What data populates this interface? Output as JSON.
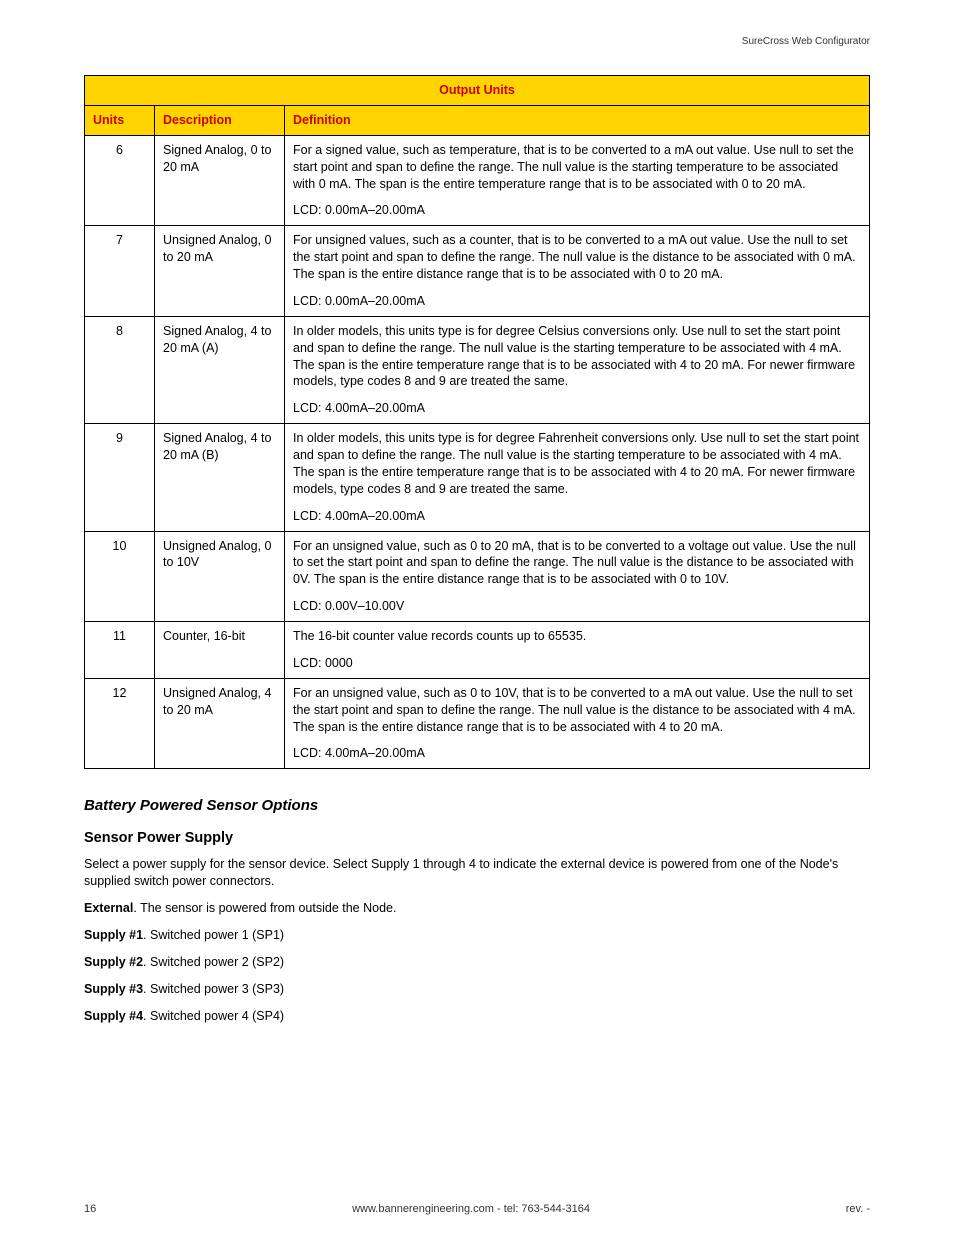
{
  "header": {
    "product": "SureCross Web Configurator"
  },
  "table": {
    "title": "Output Units",
    "columns": {
      "units": "Units",
      "description": "Description",
      "definition": "Definition"
    },
    "rows": [
      {
        "units": "6",
        "desc": "Signed Analog, 0 to 20 mA",
        "def": "For a signed value, such as temperature, that is to be converted to a mA out value. Use null to set the start point and span to define the range. The null value is the starting temperature to be associated with 0 mA. The span is the entire temperature range that is to be associated with 0 to 20 mA.",
        "lcd": "LCD: 0.00mA–20.00mA"
      },
      {
        "units": "7",
        "desc": "Unsigned Analog, 0 to 20 mA",
        "def": "For unsigned values, such as a counter, that is to be converted to a mA out value. Use the null to set the start point and span to define the range. The null value is the distance to be associated with 0 mA. The span is the entire distance range that is to be associated with 0 to 20 mA.",
        "lcd": "LCD: 0.00mA–20.00mA"
      },
      {
        "units": "8",
        "desc": "Signed Analog, 4 to 20 mA (A)",
        "def": "In older models, this units type is for degree Celsius conversions only. Use null to set the start point and span to define the range. The null value is the starting temperature to be associated with 4 mA. The span is the entire temperature range that is to be associated with 4 to 20 mA. For newer firmware models, type codes 8 and 9 are treated the same.",
        "lcd": "LCD: 4.00mA–20.00mA"
      },
      {
        "units": "9",
        "desc": "Signed Analog, 4 to 20 mA (B)",
        "def": "In older models, this units type is for degree Fahrenheit conversions only. Use null to set the start point and span to define the range. The null value is the starting temperature to be associated with 4 mA. The span is the entire temperature range that is to be associated with 4 to 20 mA. For newer firmware models, type codes 8 and 9 are treated the same.",
        "lcd": "LCD: 4.00mA–20.00mA"
      },
      {
        "units": "10",
        "desc": "Unsigned Analog, 0 to 10V",
        "def": "For an unsigned value, such as 0 to 20 mA, that is to be converted to a voltage out value. Use the null to set the start point and span to define the range. The null value is the distance to be associated with 0V. The span is the entire distance range that is to be associated with 0 to 10V.",
        "lcd": "LCD: 0.00V–10.00V"
      },
      {
        "units": "11",
        "desc": "Counter, 16-bit",
        "def": "The 16-bit counter value records counts up to 65535.",
        "lcd": "LCD: 0000"
      },
      {
        "units": "12",
        "desc": "Unsigned Analog, 4 to 20 mA",
        "def": "For an unsigned value, such as 0 to 10V, that is to be converted to a mA out value. Use the null to set the start point and span to define the range. The null value is the distance to be associated with 4 mA. The span is the entire distance range that is to be associated with 4 to 20 mA.",
        "lcd": "LCD: 4.00mA–20.00mA"
      }
    ]
  },
  "section": {
    "title": "Battery Powered Sensor Options",
    "sub_title": "Sensor Power Supply",
    "intro": "Select a power supply for the sensor device. Select Supply 1 through 4 to indicate the external device is powered from one of the Node's supplied switch power connectors.",
    "items": [
      {
        "label": "External",
        "text": ". The sensor is powered from outside the Node."
      },
      {
        "label": "Supply #1",
        "text": ". Switched power 1 (SP1)"
      },
      {
        "label": "Supply #2",
        "text": ". Switched power 2 (SP2)"
      },
      {
        "label": "Supply #3",
        "text": ". Switched power 3 (SP3)"
      },
      {
        "label": "Supply #4",
        "text": ". Switched power 4 (SP4)"
      }
    ]
  },
  "footer": {
    "page": "16",
    "center": "www.bannerengineering.com - tel: 763-544-3164",
    "rev": "rev. -"
  },
  "style": {
    "header_bg": "#ffd400",
    "header_fg": "#c00",
    "border": "#000"
  }
}
